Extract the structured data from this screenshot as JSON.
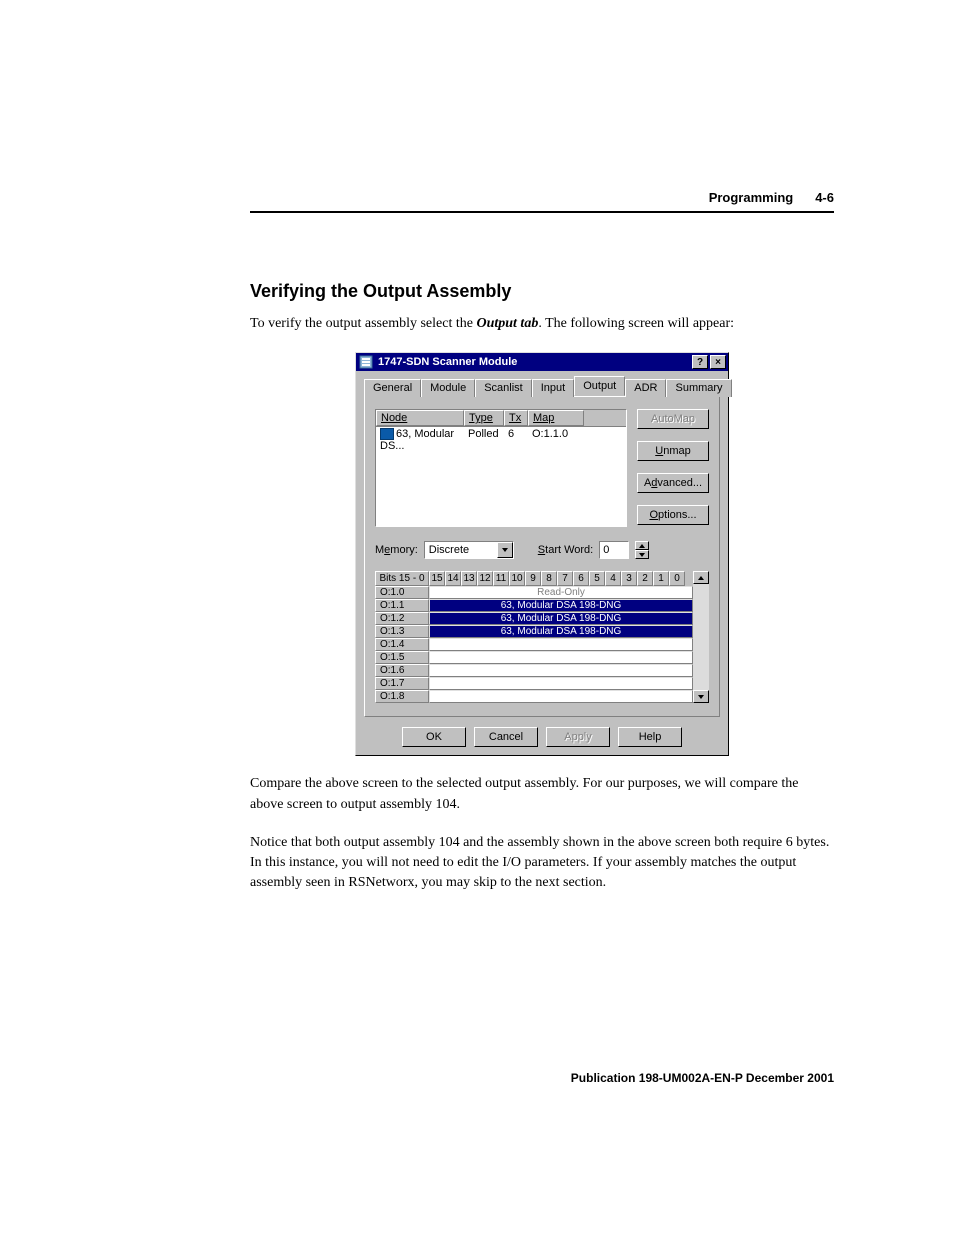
{
  "header": {
    "section": "Programming",
    "page": "4-6"
  },
  "title": "Verifying the Output Assembly",
  "intro_pre": "To verify the output assembly select the ",
  "intro_bold": "Output tab",
  "intro_post": ". The following screen will appear:",
  "para1": "Compare the above screen to the selected output assembly. For our purposes, we will compare the above screen to output assembly 104.",
  "para2": "Notice that both output assembly 104 and the assembly shown in the above screen both require 6 bytes. In this instance, you will not need to edit the I/O parameters. If your assembly matches the output assembly seen in RSNetworx, you may skip to the next section.",
  "footer": "Publication 198-UM002A-EN-P   December 2001",
  "dialog": {
    "title": "1747-SDN Scanner Module",
    "help_btn": "?",
    "close_btn": "×",
    "tabs": [
      "General",
      "Module",
      "Scanlist",
      "Input",
      "Output",
      "ADR",
      "Summary"
    ],
    "active_tab": "Output",
    "node_headers": {
      "node": "Node",
      "type": "Type",
      "tx": "Tx",
      "map": "Map"
    },
    "node_row": {
      "name": "63, Modular DS...",
      "type": "Polled",
      "tx": "6",
      "map": "O:1.1.0"
    },
    "side_buttons": {
      "automap": "AutoMap",
      "unmap": "Unmap",
      "advanced": "Advanced...",
      "options": "Options..."
    },
    "memory_label": "Memory:",
    "memory_value": "Discrete",
    "startword_label": "Start Word:",
    "startword_value": "0",
    "bits_label": "Bits 15 - 0",
    "bit_nums": [
      "15",
      "14",
      "13",
      "12",
      "11",
      "10",
      "9",
      "8",
      "7",
      "6",
      "5",
      "4",
      "3",
      "2",
      "1",
      "0"
    ],
    "rows": [
      {
        "addr": "O:1.0",
        "text": "Read-Only",
        "class": "ro"
      },
      {
        "addr": "O:1.1",
        "text": "63, Modular DSA 198-DNG",
        "class": "mapped"
      },
      {
        "addr": "O:1.2",
        "text": "63, Modular DSA 198-DNG",
        "class": "mapped"
      },
      {
        "addr": "O:1.3",
        "text": "63, Modular DSA 198-DNG",
        "class": "mapped"
      },
      {
        "addr": "O:1.4",
        "text": "",
        "class": ""
      },
      {
        "addr": "O:1.5",
        "text": "",
        "class": ""
      },
      {
        "addr": "O:1.6",
        "text": "",
        "class": ""
      },
      {
        "addr": "O:1.7",
        "text": "",
        "class": ""
      },
      {
        "addr": "O:1.8",
        "text": "",
        "class": ""
      }
    ],
    "buttons": {
      "ok": "OK",
      "cancel": "Cancel",
      "apply": "Apply",
      "help": "Help"
    }
  }
}
